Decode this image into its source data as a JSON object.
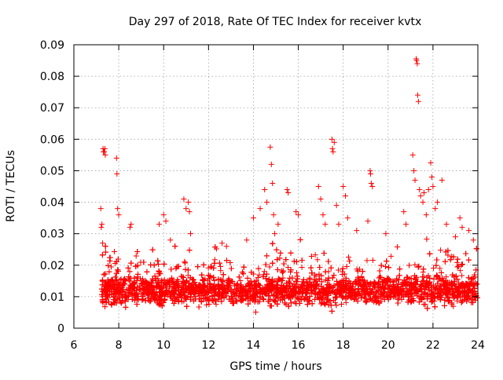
{
  "chart_data": {
    "type": "scatter",
    "title": "Day 297 of 2018, Rate Of TEC Index for receiver kvtx",
    "xlabel": "GPS time / hours",
    "ylabel": "ROTI / TECUs",
    "xlim": [
      6,
      24
    ],
    "ylim": [
      0,
      0.09
    ],
    "x_ticks": [
      "6",
      "8",
      "10",
      "12",
      "14",
      "16",
      "18",
      "20",
      "22",
      "24"
    ],
    "y_ticks": [
      "0",
      "0.01",
      "0.02",
      "0.03",
      "0.04",
      "0.05",
      "0.06",
      "0.07",
      "0.08",
      "0.09"
    ],
    "grid": true,
    "marker": "+",
    "marker_color": "#ff0000",
    "series": [
      {
        "name": "ROTI",
        "dense_band": {
          "x_range": [
            7.2,
            24.0
          ],
          "y_typical_range": [
            0.004,
            0.022
          ],
          "y_median": 0.012,
          "approx_points_per_hour": 320
        },
        "points": [
          {
            "x": 7.2,
            "y": 0.038
          },
          {
            "x": 7.25,
            "y": 0.033
          },
          {
            "x": 7.22,
            "y": 0.032
          },
          {
            "x": 7.3,
            "y": 0.057
          },
          {
            "x": 7.35,
            "y": 0.056
          },
          {
            "x": 7.4,
            "y": 0.055
          },
          {
            "x": 7.38,
            "y": 0.057
          },
          {
            "x": 7.32,
            "y": 0.056
          },
          {
            "x": 7.28,
            "y": 0.027
          },
          {
            "x": 7.9,
            "y": 0.054
          },
          {
            "x": 7.92,
            "y": 0.049
          },
          {
            "x": 7.95,
            "y": 0.038
          },
          {
            "x": 8.0,
            "y": 0.036
          },
          {
            "x": 8.5,
            "y": 0.032
          },
          {
            "x": 8.55,
            "y": 0.033
          },
          {
            "x": 9.8,
            "y": 0.033
          },
          {
            "x": 10.0,
            "y": 0.036
          },
          {
            "x": 10.1,
            "y": 0.034
          },
          {
            "x": 10.3,
            "y": 0.028
          },
          {
            "x": 10.9,
            "y": 0.041
          },
          {
            "x": 11.0,
            "y": 0.038
          },
          {
            "x": 11.1,
            "y": 0.04
          },
          {
            "x": 11.15,
            "y": 0.037
          },
          {
            "x": 11.2,
            "y": 0.03
          },
          {
            "x": 12.6,
            "y": 0.027
          },
          {
            "x": 12.8,
            "y": 0.026
          },
          {
            "x": 13.7,
            "y": 0.028
          },
          {
            "x": 14.0,
            "y": 0.035
          },
          {
            "x": 14.3,
            "y": 0.038
          },
          {
            "x": 14.5,
            "y": 0.044
          },
          {
            "x": 14.6,
            "y": 0.04
          },
          {
            "x": 14.75,
            "y": 0.0575
          },
          {
            "x": 14.8,
            "y": 0.052
          },
          {
            "x": 14.85,
            "y": 0.046
          },
          {
            "x": 14.9,
            "y": 0.036
          },
          {
            "x": 14.95,
            "y": 0.03
          },
          {
            "x": 15.1,
            "y": 0.033
          },
          {
            "x": 15.5,
            "y": 0.044
          },
          {
            "x": 15.55,
            "y": 0.043
          },
          {
            "x": 15.9,
            "y": 0.037
          },
          {
            "x": 16.0,
            "y": 0.036
          },
          {
            "x": 16.9,
            "y": 0.045
          },
          {
            "x": 17.0,
            "y": 0.041
          },
          {
            "x": 17.1,
            "y": 0.036
          },
          {
            "x": 17.2,
            "y": 0.033
          },
          {
            "x": 17.5,
            "y": 0.06
          },
          {
            "x": 17.52,
            "y": 0.057
          },
          {
            "x": 17.55,
            "y": 0.056
          },
          {
            "x": 17.6,
            "y": 0.059
          },
          {
            "x": 17.7,
            "y": 0.039
          },
          {
            "x": 17.8,
            "y": 0.033
          },
          {
            "x": 18.0,
            "y": 0.045
          },
          {
            "x": 18.1,
            "y": 0.042
          },
          {
            "x": 18.2,
            "y": 0.035
          },
          {
            "x": 18.6,
            "y": 0.031
          },
          {
            "x": 19.1,
            "y": 0.034
          },
          {
            "x": 19.2,
            "y": 0.05
          },
          {
            "x": 19.22,
            "y": 0.049
          },
          {
            "x": 19.25,
            "y": 0.046
          },
          {
            "x": 19.3,
            "y": 0.045
          },
          {
            "x": 19.9,
            "y": 0.03
          },
          {
            "x": 20.7,
            "y": 0.037
          },
          {
            "x": 20.8,
            "y": 0.033
          },
          {
            "x": 21.1,
            "y": 0.055
          },
          {
            "x": 21.15,
            "y": 0.05
          },
          {
            "x": 21.2,
            "y": 0.047
          },
          {
            "x": 21.25,
            "y": 0.0855
          },
          {
            "x": 21.27,
            "y": 0.085
          },
          {
            "x": 21.3,
            "y": 0.084
          },
          {
            "x": 21.32,
            "y": 0.074
          },
          {
            "x": 21.35,
            "y": 0.072
          },
          {
            "x": 21.4,
            "y": 0.044
          },
          {
            "x": 21.45,
            "y": 0.042
          },
          {
            "x": 21.55,
            "y": 0.04
          },
          {
            "x": 21.6,
            "y": 0.043
          },
          {
            "x": 21.7,
            "y": 0.036
          },
          {
            "x": 21.8,
            "y": 0.044
          },
          {
            "x": 21.9,
            "y": 0.0525
          },
          {
            "x": 21.95,
            "y": 0.048
          },
          {
            "x": 22.0,
            "y": 0.045
          },
          {
            "x": 22.1,
            "y": 0.038
          },
          {
            "x": 22.2,
            "y": 0.04
          },
          {
            "x": 22.4,
            "y": 0.047
          },
          {
            "x": 22.6,
            "y": 0.033
          },
          {
            "x": 23.0,
            "y": 0.029
          },
          {
            "x": 23.2,
            "y": 0.035
          },
          {
            "x": 23.3,
            "y": 0.032
          },
          {
            "x": 23.6,
            "y": 0.031
          },
          {
            "x": 23.8,
            "y": 0.028
          }
        ]
      }
    ]
  }
}
